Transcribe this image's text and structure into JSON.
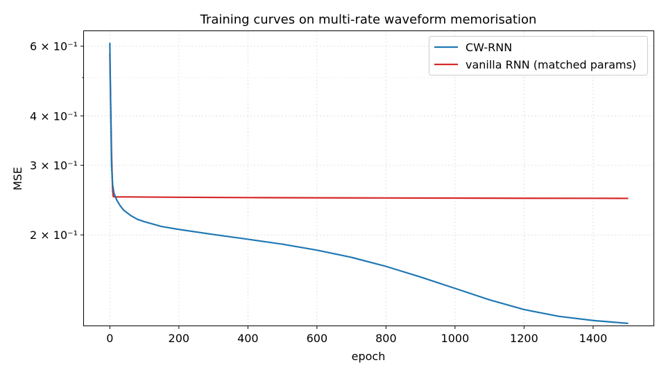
{
  "chart_data": {
    "type": "line",
    "title": "Training curves on multi-rate waveform memorisation",
    "xlabel": "epoch",
    "ylabel": "MSE",
    "xlim": [
      -75,
      1575
    ],
    "ylim": [
      0.118,
      0.655
    ],
    "yscale": "log",
    "grid": true,
    "legend_position": "top-right",
    "x_ticks": [
      {
        "value": 0,
        "label": "0"
      },
      {
        "value": 200,
        "label": "200"
      },
      {
        "value": 400,
        "label": "400"
      },
      {
        "value": 600,
        "label": "600"
      },
      {
        "value": 800,
        "label": "800"
      },
      {
        "value": 1000,
        "label": "1000"
      },
      {
        "value": 1200,
        "label": "1200"
      },
      {
        "value": 1400,
        "label": "1400"
      }
    ],
    "y_ticks": [
      {
        "value": 0.2,
        "label": "2 × 10⁻¹"
      },
      {
        "value": 0.3,
        "label": "3 × 10⁻¹"
      },
      {
        "value": 0.4,
        "label": "4 × 10⁻¹"
      },
      {
        "value": 0.6,
        "label": "6 × 10⁻¹"
      }
    ],
    "y_minor_ticks": [
      0.5
    ],
    "series": [
      {
        "name": "CW-RNN",
        "color": "#1f77b4",
        "points": [
          [
            0,
            0.61
          ],
          [
            2,
            0.45
          ],
          [
            5,
            0.3
          ],
          [
            8,
            0.268
          ],
          [
            12,
            0.255
          ],
          [
            20,
            0.245
          ],
          [
            30,
            0.237
          ],
          [
            40,
            0.231
          ],
          [
            60,
            0.224
          ],
          [
            80,
            0.219
          ],
          [
            100,
            0.216
          ],
          [
            150,
            0.21
          ],
          [
            200,
            0.2065
          ],
          [
            300,
            0.2005
          ],
          [
            400,
            0.195
          ],
          [
            500,
            0.1895
          ],
          [
            600,
            0.183
          ],
          [
            700,
            0.1755
          ],
          [
            800,
            0.1665
          ],
          [
            900,
            0.1565
          ],
          [
            1000,
            0.1465
          ],
          [
            1100,
            0.137
          ],
          [
            1200,
            0.1295
          ],
          [
            1300,
            0.1245
          ],
          [
            1400,
            0.1215
          ],
          [
            1500,
            0.1195
          ]
        ]
      },
      {
        "name": "vanilla RNN (matched params)",
        "color": "#d62728",
        "points": [
          [
            0,
            0.575
          ],
          [
            2,
            0.45
          ],
          [
            5,
            0.32
          ],
          [
            8,
            0.26
          ],
          [
            10,
            0.25
          ],
          [
            15,
            0.2495
          ],
          [
            50,
            0.2495
          ],
          [
            200,
            0.249
          ],
          [
            400,
            0.2485
          ],
          [
            600,
            0.2482
          ],
          [
            800,
            0.248
          ],
          [
            1000,
            0.2478
          ],
          [
            1200,
            0.2476
          ],
          [
            1400,
            0.2475
          ],
          [
            1500,
            0.2474
          ]
        ]
      }
    ]
  }
}
